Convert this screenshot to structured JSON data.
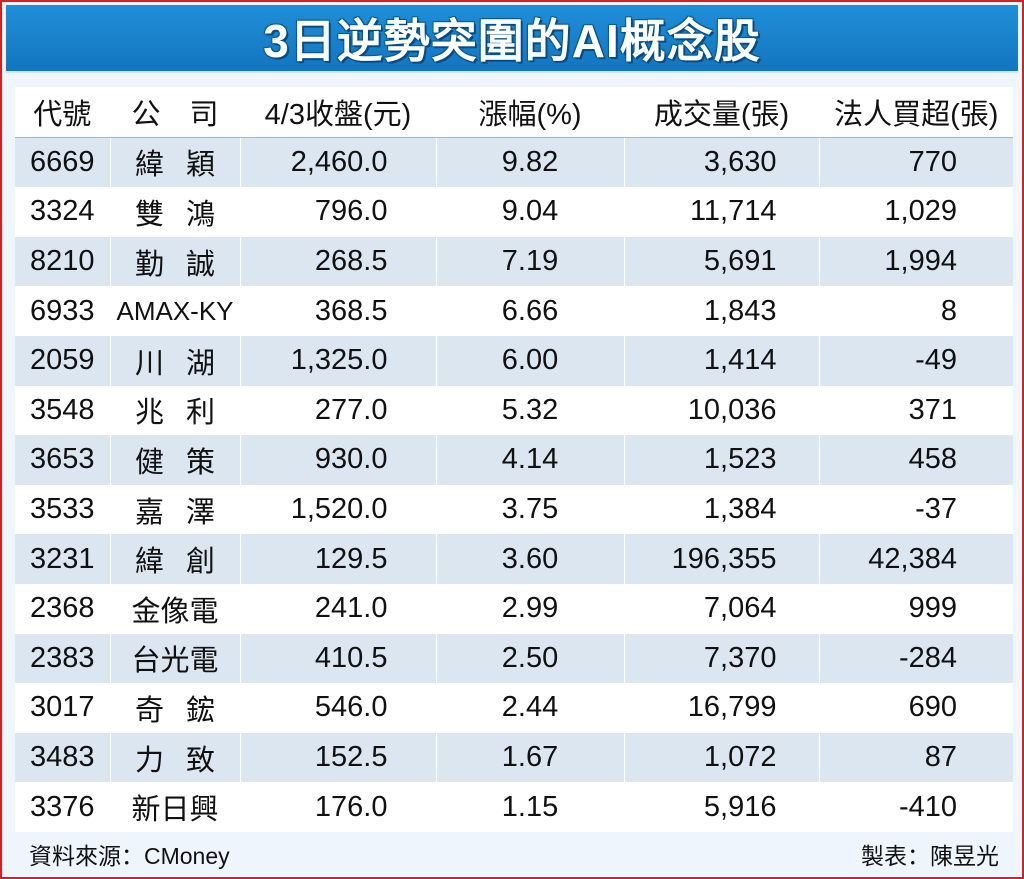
{
  "title": "3日逆勢突圍的AI概念股",
  "headers": [
    "代號",
    "公　司",
    "4/3收盤(元)",
    "漲幅(%)",
    "成交量(張)",
    "法人買超(張)"
  ],
  "rows": [
    [
      "6669",
      "緯穎",
      "2,460.0",
      "9.82",
      "3,630",
      "770"
    ],
    [
      "3324",
      "雙鴻",
      "796.0",
      "9.04",
      "11,714",
      "1,029"
    ],
    [
      "8210",
      "勤誠",
      "268.5",
      "7.19",
      "5,691",
      "1,994"
    ],
    [
      "6933",
      "AMAX-KY",
      "368.5",
      "6.66",
      "1,843",
      "8"
    ],
    [
      "2059",
      "川湖",
      "1,325.0",
      "6.00",
      "1,414",
      "-49"
    ],
    [
      "3548",
      "兆利",
      "277.0",
      "5.32",
      "10,036",
      "371"
    ],
    [
      "3653",
      "健策",
      "930.0",
      "4.14",
      "1,523",
      "458"
    ],
    [
      "3533",
      "嘉澤",
      "1,520.0",
      "3.75",
      "1,384",
      "-37"
    ],
    [
      "3231",
      "緯創",
      "129.5",
      "3.60",
      "196,355",
      "42,384"
    ],
    [
      "2368",
      "金像電",
      "241.0",
      "2.99",
      "7,064",
      "999"
    ],
    [
      "2383",
      "台光電",
      "410.5",
      "2.50",
      "7,370",
      "-284"
    ],
    [
      "3017",
      "奇鋐",
      "546.0",
      "2.44",
      "16,799",
      "690"
    ],
    [
      "3483",
      "力致",
      "152.5",
      "1.67",
      "1,072",
      "87"
    ],
    [
      "3376",
      "新日興",
      "176.0",
      "1.15",
      "5,916",
      "-410"
    ]
  ],
  "footer": {
    "source": "資料來源：CMoney",
    "credit": "製表：陳昱光"
  },
  "colors": {
    "title_bg": "#1a82cc",
    "border": "#d9201f",
    "row_stripe": "#dce6f1"
  }
}
